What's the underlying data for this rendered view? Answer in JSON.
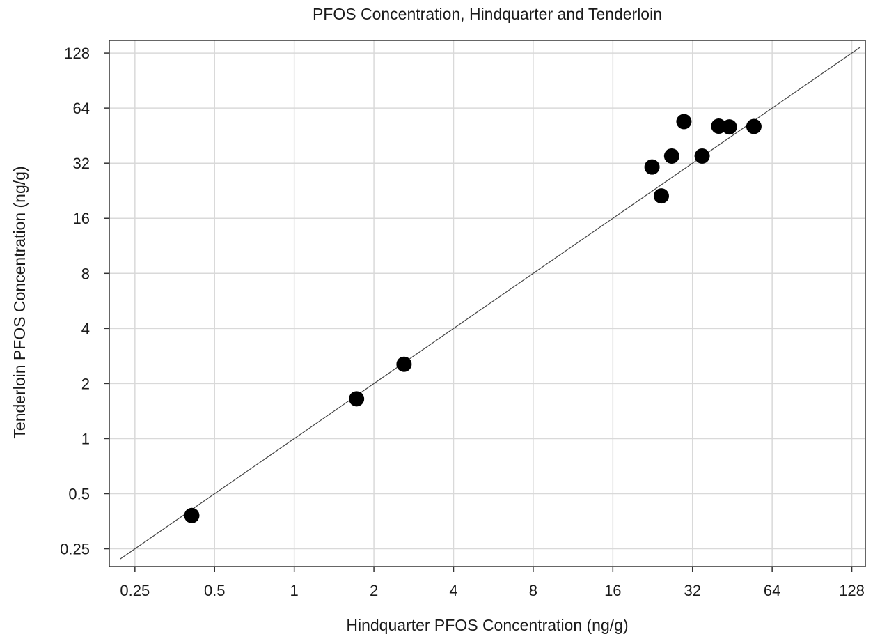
{
  "chart_data": {
    "type": "scatter",
    "title": "PFOS Concentration, Hindquarter and Tenderloin",
    "xlabel": "Hindquarter PFOS Concentration (ng/g)",
    "ylabel": "Tenderloin PFOS Concentration (ng/g)",
    "x_scale": "log2",
    "y_scale": "log2",
    "xlim": [
      0.2,
      144
    ],
    "ylim": [
      0.2,
      150
    ],
    "x_ticks": [
      0.25,
      0.5,
      1,
      2,
      4,
      8,
      16,
      32,
      64,
      128
    ],
    "x_tick_labels": [
      "0.25",
      "0.5",
      "1",
      "2",
      "4",
      "8",
      "16",
      "32",
      "64",
      "128"
    ],
    "y_ticks": [
      0.25,
      0.5,
      1,
      2,
      4,
      8,
      16,
      32,
      64,
      128
    ],
    "y_tick_labels": [
      "0.25",
      "0.5",
      "1",
      "2",
      "4",
      "8",
      "16",
      "32",
      "64",
      "128"
    ],
    "grid": true,
    "reference_line": {
      "type": "y=x",
      "x": [
        0.22,
        138
      ],
      "y": [
        0.22,
        138
      ]
    },
    "points": [
      {
        "x": 0.41,
        "y": 0.38
      },
      {
        "x": 1.72,
        "y": 1.65
      },
      {
        "x": 2.6,
        "y": 2.55
      },
      {
        "x": 22.5,
        "y": 30.5
      },
      {
        "x": 24.4,
        "y": 21.2
      },
      {
        "x": 26.7,
        "y": 35.0
      },
      {
        "x": 29.7,
        "y": 54.0
      },
      {
        "x": 34.8,
        "y": 35.0
      },
      {
        "x": 40.2,
        "y": 51.0
      },
      {
        "x": 44.1,
        "y": 50.5
      },
      {
        "x": 54.6,
        "y": 50.8
      }
    ],
    "colors": {
      "point": "#000000",
      "grid": "#d9d9d9",
      "line": "#444444",
      "frame": "#333333"
    }
  }
}
